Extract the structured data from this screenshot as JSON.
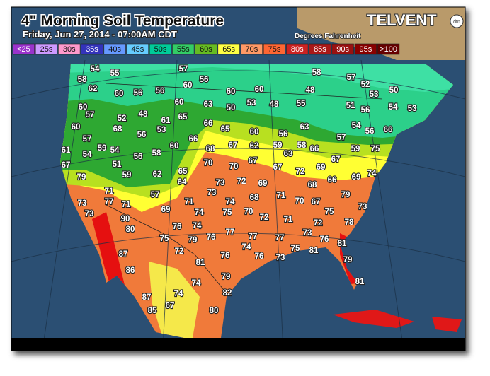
{
  "header": {
    "title": "4\" Morning Soil Temperature",
    "subtitle": "Friday, Jun 27, 2014 - 07:00AM CDT",
    "units": "Degrees Fahrenheit",
    "brand": "TELVENT",
    "brand_mark": "dtn"
  },
  "legend": [
    {
      "label": "<25",
      "color": "#9a33cc"
    },
    {
      "label": "25s",
      "color": "#cc99ff"
    },
    {
      "label": "30s",
      "color": "#ff99cc"
    },
    {
      "label": "35s",
      "color": "#3333bb"
    },
    {
      "label": "40s",
      "color": "#6699ff"
    },
    {
      "label": "45s",
      "color": "#66ccff"
    },
    {
      "label": "50s",
      "color": "#00cc99"
    },
    {
      "label": "55s",
      "color": "#33cc66"
    },
    {
      "label": "60s",
      "color": "#66bb22"
    },
    {
      "label": "65s",
      "color": "#ffff44"
    },
    {
      "label": "70s",
      "color": "#ff9966"
    },
    {
      "label": "75s",
      "color": "#ff6633"
    },
    {
      "label": "80s",
      "color": "#cc2222"
    },
    {
      "label": "85s",
      "color": "#aa1818"
    },
    {
      "label": "90s",
      "color": "#991111"
    },
    {
      "label": "95s",
      "color": "#880000"
    },
    {
      "label": ">100",
      "color": "#660000"
    }
  ],
  "readings": [
    54,
    55,
    57,
    56,
    58,
    57,
    52,
    53,
    50,
    58,
    62,
    60,
    56,
    56,
    60,
    60,
    60,
    48,
    60,
    57,
    52,
    48,
    61,
    60,
    65,
    63,
    50,
    53,
    48,
    55,
    51,
    56,
    54,
    53,
    60,
    68,
    56,
    53,
    66,
    65,
    60,
    56,
    63,
    57,
    54,
    56,
    66,
    61,
    57,
    54,
    59,
    54,
    56,
    58,
    60,
    66,
    68,
    67,
    62,
    59,
    63,
    58,
    66,
    59,
    75,
    67,
    79,
    51,
    59,
    62,
    65,
    64,
    70,
    70,
    67,
    67,
    72,
    69,
    67,
    69,
    74,
    71,
    57,
    73,
    73,
    72,
    68,
    69,
    71,
    68,
    66,
    79,
    73,
    77,
    71,
    69,
    71,
    74,
    74,
    75,
    70,
    72,
    70,
    67,
    75,
    73,
    73,
    90,
    80,
    76,
    74,
    71,
    72,
    78,
    75,
    79,
    76,
    77,
    77,
    77,
    73,
    76,
    81,
    87,
    72,
    81,
    76,
    74,
    76,
    73,
    75,
    81,
    79,
    86,
    79,
    74,
    81,
    87,
    74,
    82,
    85,
    67,
    80
  ]
}
